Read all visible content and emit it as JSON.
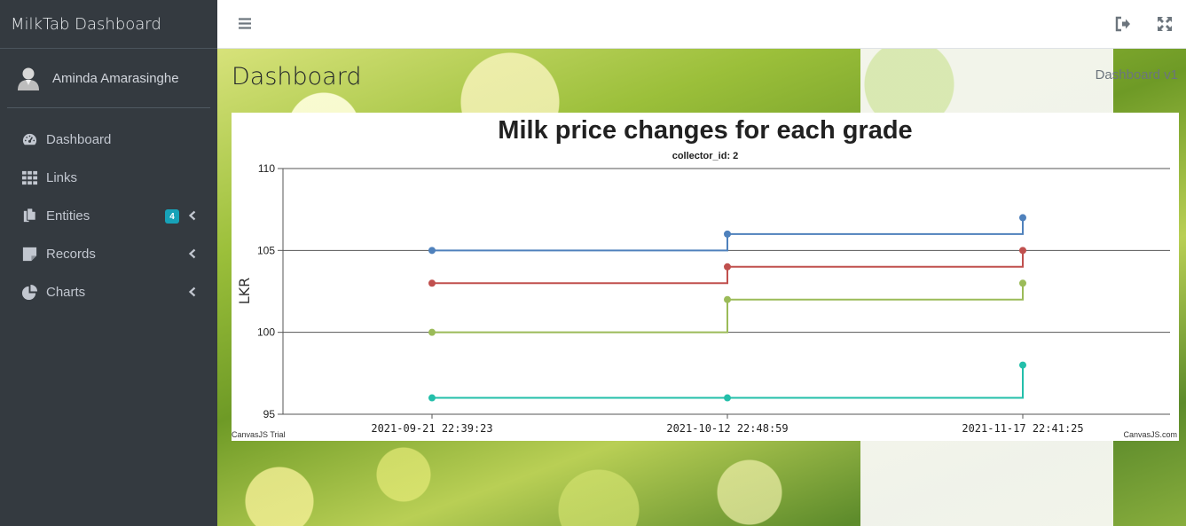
{
  "sidebar": {
    "brand": "MilkTab Dashboard",
    "user": {
      "name": "Aminda Amarasinghe"
    },
    "items": [
      {
        "label": "Dashboard",
        "icon": "tachometer-icon",
        "badge": "",
        "has_chevron": false
      },
      {
        "label": "Links",
        "icon": "grid-icon",
        "badge": "",
        "has_chevron": false
      },
      {
        "label": "Entities",
        "icon": "copy-icon",
        "badge": "4",
        "has_chevron": true
      },
      {
        "label": "Records",
        "icon": "sticky-note-icon",
        "badge": "",
        "has_chevron": true
      },
      {
        "label": "Charts",
        "icon": "pie-chart-icon",
        "badge": "",
        "has_chevron": true
      }
    ]
  },
  "topbar": {
    "menu_icon": "hamburger-icon",
    "logout_icon": "sign-out-icon",
    "fullscreen_icon": "expand-icon"
  },
  "page": {
    "title": "Dashboard",
    "breadcrumb": "Dashboard v1"
  },
  "chart_data": {
    "type": "line",
    "step": true,
    "title": "Milk price changes for each grade",
    "subtitle": "collector_id: 2",
    "ylabel": "LKR",
    "xlabel": "",
    "ylim": [
      95,
      110
    ],
    "yticks": [
      95,
      100,
      105,
      110
    ],
    "gridlines": [
      100,
      105,
      110
    ],
    "categories": [
      "2021-09-21 22:39:23",
      "2021-10-12 22:48:59",
      "2021-11-17 22:41:25"
    ],
    "series": [
      {
        "color": "#4f81bc",
        "values": [
          105,
          106,
          107
        ]
      },
      {
        "color": "#c0504e",
        "values": [
          103,
          104,
          105
        ]
      },
      {
        "color": "#9bbb58",
        "values": [
          100,
          102,
          103
        ]
      },
      {
        "color": "#23bfaa",
        "values": [
          96,
          96,
          98
        ]
      }
    ],
    "credits_left": "CanvasJS Trial",
    "credits_right": "CanvasJS.com"
  }
}
